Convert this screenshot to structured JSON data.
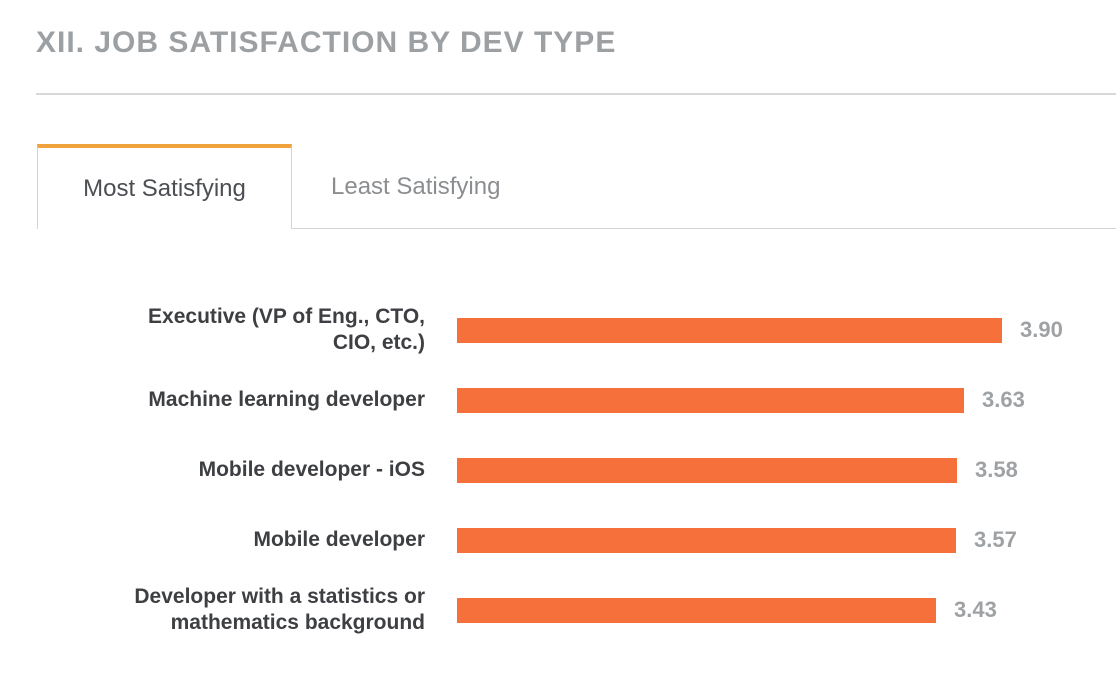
{
  "header": {
    "title": "XII. JOB SATISFACTION BY DEV TYPE"
  },
  "tabs": [
    {
      "label": "Most Satisfying",
      "active": true
    },
    {
      "label": "Least Satisfying",
      "active": false
    }
  ],
  "colors": {
    "bar": "#f6703c",
    "tab_accent": "#f0a33c",
    "value_label": "#9fa2a5"
  },
  "chart_data": {
    "type": "bar",
    "orientation": "horizontal",
    "title": "XII. JOB SATISFACTION BY DEV TYPE",
    "subtitle": "Most Satisfying",
    "categories": [
      "Executive (VP of Eng., CTO, CIO, etc.)",
      "Machine learning developer",
      "Mobile developer - iOS",
      "Mobile developer",
      "Developer with a statistics or mathematics background"
    ],
    "display_labels": [
      "Executive (VP of Eng., CTO,\nCIO, etc.)",
      "Machine learning developer",
      "Mobile developer - iOS",
      "Mobile developer",
      "Developer with a statistics or\nmathematics background"
    ],
    "values": [
      3.9,
      3.63,
      3.58,
      3.57,
      3.43
    ],
    "value_labels": [
      "3.90",
      "3.63",
      "3.58",
      "3.57",
      "3.43"
    ],
    "xlim": [
      0,
      3.9
    ],
    "grid": false,
    "legend": false,
    "bar_color": "#f6703c",
    "value_label_color": "#9fa2a5"
  }
}
